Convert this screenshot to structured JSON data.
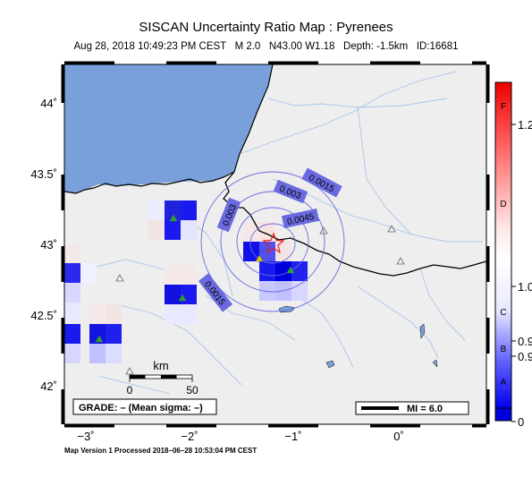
{
  "header": {
    "title": "SISCAN Uncertainty Ratio Map : Pyrenees",
    "subtitle": "Aug 28, 2018 10:49:23 PM CEST   M 2.0   N43.00 W1.18   Depth: -1.5km   ID:16681"
  },
  "axes": {
    "lat_labels": [
      "44˚",
      "43.5˚",
      "43˚",
      "42.5˚",
      "42˚"
    ],
    "lon_labels": [
      "−3˚",
      "−2˚",
      "−1˚",
      "0˚"
    ]
  },
  "contours": {
    "labels": [
      "0.0015",
      "0.003",
      "0.0045",
      "0.003",
      "0.0015"
    ]
  },
  "scale_bar": {
    "unit": "km",
    "ticks": [
      "0",
      "50"
    ]
  },
  "grade_box": "GRADE: – (Mean sigma: –)",
  "mi_legend": "MI = 6.0",
  "colorbar": {
    "grades": [
      "F",
      "D",
      "C",
      "B",
      "A"
    ],
    "values": [
      "1.2",
      "1.0",
      "0.9",
      "0.9",
      "0"
    ]
  },
  "footer": "Map Version 1 Processed 2018–06–28 10:53:04 PM CEST",
  "colors": {
    "sea": "#7aa0dc",
    "land": "#eeeeee",
    "contour": "#6a6ae0",
    "epicenter": "#e02020",
    "station": "#22aa22"
  }
}
